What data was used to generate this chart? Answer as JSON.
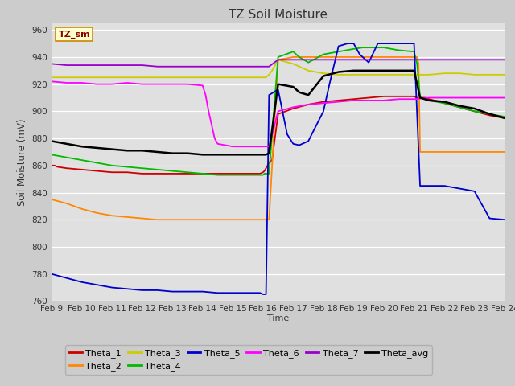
{
  "title": "TZ Soil Moisture",
  "xlabel": "Time",
  "ylabel": "Soil Moisture (mV)",
  "ylim": [
    760,
    965
  ],
  "yticks": [
    760,
    780,
    800,
    820,
    840,
    860,
    880,
    900,
    920,
    940,
    960
  ],
  "fig_bg": "#cccccc",
  "plot_bg": "#e0e0e0",
  "label_box": "TZ_sm",
  "legend_entries": [
    "Theta_1",
    "Theta_2",
    "Theta_3",
    "Theta_4",
    "Theta_5",
    "Theta_6",
    "Theta_7",
    "Theta_avg"
  ],
  "legend_colors": [
    "#cc0000",
    "#ff8800",
    "#cccc00",
    "#00bb00",
    "#0000cc",
    "#ff00ff",
    "#9900cc",
    "#000000"
  ],
  "xtick_labels": [
    "Feb 9",
    "Feb 10",
    "Feb 11",
    "Feb 12",
    "Feb 13",
    "Feb 14",
    "Feb 15",
    "Feb 16",
    "Feb 17",
    "Feb 18",
    "Feb 19",
    "Feb 20",
    "Feb 21",
    "Feb 22",
    "Feb 23",
    "Feb 24"
  ],
  "xtick_positions": [
    9,
    10,
    11,
    12,
    13,
    14,
    15,
    16,
    17,
    18,
    19,
    20,
    21,
    22,
    23,
    24
  ],
  "series": {
    "Theta_1": {
      "color": "#cc0000",
      "x": [
        9.0,
        9.1,
        9.2,
        9.5,
        10,
        10.5,
        11,
        11.5,
        12,
        12.5,
        13,
        13.5,
        14,
        14.5,
        15,
        15.5,
        15.9,
        16.0,
        16.05,
        16.1,
        16.15,
        16.2,
        16.3,
        16.5,
        17,
        17.5,
        18,
        18.5,
        19,
        19.5,
        20,
        20.3,
        20.5,
        20.8,
        21,
        21.1,
        21.2,
        21.4,
        21.5,
        22,
        22.5,
        23,
        23.5,
        24
      ],
      "y": [
        860,
        860,
        859,
        858,
        857,
        856,
        855,
        855,
        854,
        854,
        854,
        854,
        854,
        854,
        854,
        854,
        854,
        855,
        856,
        858,
        860,
        862,
        864,
        898,
        902,
        905,
        907,
        908,
        909,
        910,
        911,
        911,
        911,
        911,
        911,
        910,
        910,
        910,
        909,
        906,
        903,
        900,
        897,
        895
      ]
    },
    "Theta_2": {
      "color": "#ff8800",
      "x": [
        9.0,
        9.5,
        10,
        10.5,
        11,
        11.5,
        12,
        12.5,
        13,
        13.5,
        14,
        14.5,
        15,
        15.5,
        16.0,
        16.05,
        16.1,
        16.2,
        16.5,
        17,
        17.5,
        18,
        18.5,
        19,
        19.5,
        20,
        20.5,
        21,
        21.1,
        21.15,
        21.2,
        21.5,
        22,
        22.5,
        23,
        23.5,
        24
      ],
      "y": [
        835,
        832,
        828,
        825,
        823,
        822,
        821,
        820,
        820,
        820,
        820,
        820,
        820,
        820,
        820,
        820,
        820,
        820,
        938,
        940,
        940,
        940,
        940,
        940,
        940,
        940,
        940,
        940,
        940,
        935,
        870,
        870,
        870,
        870,
        870,
        870,
        870
      ]
    },
    "Theta_3": {
      "color": "#cccc00",
      "x": [
        9.0,
        9.5,
        10,
        10.5,
        11,
        11.5,
        12,
        12.5,
        13,
        13.5,
        14,
        14.5,
        15,
        15.5,
        16,
        16.1,
        16.2,
        16.3,
        16.5,
        17,
        17.5,
        18,
        18.5,
        19,
        19.5,
        20,
        20.5,
        21,
        21.5,
        22,
        22.5,
        23,
        23.5,
        24
      ],
      "y": [
        925,
        925,
        925,
        925,
        925,
        925,
        925,
        925,
        925,
        925,
        925,
        925,
        925,
        925,
        925,
        925,
        927,
        930,
        938,
        935,
        930,
        928,
        927,
        927,
        927,
        927,
        927,
        927,
        927,
        928,
        928,
        927,
        927,
        927
      ]
    },
    "Theta_4": {
      "color": "#00bb00",
      "x": [
        9.0,
        9.5,
        10,
        10.5,
        11,
        11.5,
        12,
        12.5,
        13,
        13.5,
        14,
        14.5,
        15,
        15.5,
        16,
        16.05,
        16.1,
        16.2,
        16.5,
        17,
        17.2,
        17.5,
        18,
        18.5,
        19,
        19.3,
        19.5,
        20,
        20.5,
        21,
        21.1,
        21.2,
        21.5,
        22,
        22.5,
        23,
        23.5,
        24
      ],
      "y": [
        868,
        866,
        864,
        862,
        860,
        859,
        858,
        857,
        856,
        855,
        854,
        853,
        853,
        853,
        853,
        854,
        854,
        854,
        940,
        944,
        940,
        936,
        942,
        944,
        946,
        947,
        947,
        947,
        945,
        944,
        935,
        910,
        908,
        906,
        903,
        900,
        898,
        896
      ]
    },
    "Theta_5": {
      "color": "#0000cc",
      "x": [
        9.0,
        9.5,
        10,
        10.5,
        11,
        11.5,
        12,
        12.5,
        13,
        13.5,
        14,
        14.5,
        15,
        15.5,
        15.9,
        16.0,
        16.05,
        16.1,
        16.2,
        16.5,
        16.8,
        17.0,
        17.2,
        17.5,
        18.0,
        18.2,
        18.5,
        18.8,
        19.0,
        19.2,
        19.5,
        19.8,
        20.0,
        20.3,
        20.5,
        20.8,
        21.0,
        21.2,
        21.3,
        21.5,
        22.0,
        22.5,
        23.0,
        23.5,
        24.0
      ],
      "y": [
        780,
        777,
        774,
        772,
        770,
        769,
        768,
        768,
        767,
        767,
        767,
        766,
        766,
        766,
        766,
        765,
        765,
        765,
        912,
        916,
        883,
        876,
        875,
        878,
        900,
        920,
        948,
        950,
        950,
        942,
        936,
        950,
        950,
        950,
        950,
        950,
        950,
        845,
        845,
        845,
        845,
        843,
        841,
        821,
        820
      ]
    },
    "Theta_6": {
      "color": "#ff00ff",
      "x": [
        9.0,
        9.5,
        10,
        10.5,
        11,
        11.5,
        12,
        12.5,
        13,
        13.5,
        14,
        14.1,
        14.2,
        14.4,
        14.5,
        15,
        15.5,
        16,
        16.2,
        16.5,
        17,
        17.5,
        18,
        18.5,
        19,
        19.5,
        20,
        20.5,
        21,
        21.5,
        22,
        22.5,
        23,
        23.5,
        24
      ],
      "y": [
        922,
        921,
        921,
        920,
        920,
        921,
        920,
        920,
        920,
        920,
        919,
        912,
        900,
        880,
        876,
        874,
        874,
        874,
        874,
        900,
        903,
        905,
        906,
        907,
        908,
        908,
        908,
        909,
        909,
        910,
        910,
        910,
        910,
        910,
        910
      ]
    },
    "Theta_7": {
      "color": "#9900cc",
      "x": [
        9.0,
        9.5,
        10,
        10.5,
        11,
        11.5,
        12,
        12.5,
        13,
        13.5,
        14,
        14.5,
        15,
        15.5,
        16,
        16.2,
        16.5,
        17,
        17.5,
        18,
        18.5,
        19,
        19.5,
        20,
        20.5,
        21,
        21.5,
        22,
        22.5,
        23,
        23.5,
        24
      ],
      "y": [
        935,
        934,
        934,
        934,
        934,
        934,
        934,
        933,
        933,
        933,
        933,
        933,
        933,
        933,
        933,
        933,
        938,
        938,
        938,
        938,
        938,
        938,
        938,
        938,
        938,
        938,
        938,
        938,
        938,
        938,
        938,
        938
      ]
    },
    "Theta_avg": {
      "color": "#000000",
      "x": [
        9.0,
        9.5,
        10,
        10.5,
        11,
        11.5,
        12,
        12.5,
        13,
        13.5,
        14,
        14.5,
        15,
        15.5,
        16,
        16.05,
        16.1,
        16.2,
        16.5,
        17,
        17.2,
        17.5,
        18,
        18.5,
        19,
        19.5,
        20,
        20.5,
        21,
        21.1,
        21.2,
        21.5,
        22,
        22.5,
        23,
        23.5,
        24
      ],
      "y": [
        878,
        876,
        874,
        873,
        872,
        871,
        871,
        870,
        869,
        869,
        868,
        868,
        868,
        868,
        868,
        868,
        868,
        869,
        920,
        918,
        914,
        912,
        926,
        929,
        930,
        930,
        930,
        930,
        930,
        920,
        910,
        908,
        907,
        904,
        902,
        898,
        895
      ]
    }
  }
}
